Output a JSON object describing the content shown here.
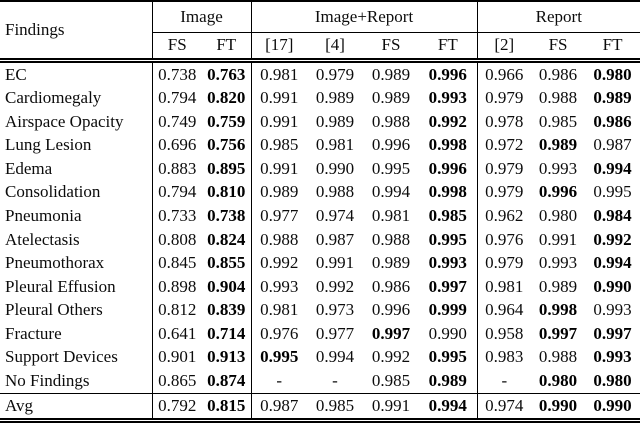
{
  "page": {
    "background_color": "#ffffff",
    "text_color": "#0c0c0c",
    "description": "Academic paper results table of per-finding scores"
  },
  "table": {
    "findings_header": "Findings",
    "groups": [
      {
        "label": "Image",
        "cols": [
          "FS",
          "FT"
        ]
      },
      {
        "label": "Image+Report",
        "cols": [
          "[17]",
          "[4]",
          "FS",
          "FT"
        ]
      },
      {
        "label": "Report",
        "cols": [
          "[2]",
          "FS",
          "FT"
        ]
      }
    ],
    "rows": [
      {
        "finding": "EC",
        "cells": [
          "0.738",
          "0.763",
          "0.981",
          "0.979",
          "0.989",
          "0.996",
          "0.966",
          "0.986",
          "0.980"
        ],
        "bold": [
          1,
          5,
          8
        ]
      },
      {
        "finding": "Cardiomegaly",
        "cells": [
          "0.794",
          "0.820",
          "0.991",
          "0.989",
          "0.989",
          "0.993",
          "0.979",
          "0.988",
          "0.989"
        ],
        "bold": [
          1,
          5,
          8
        ]
      },
      {
        "finding": "Airspace Opacity",
        "cells": [
          "0.749",
          "0.759",
          "0.991",
          "0.989",
          "0.988",
          "0.992",
          "0.978",
          "0.985",
          "0.986"
        ],
        "bold": [
          1,
          5,
          8
        ]
      },
      {
        "finding": "Lung Lesion",
        "cells": [
          "0.696",
          "0.756",
          "0.985",
          "0.981",
          "0.996",
          "0.998",
          "0.972",
          "0.989",
          "0.987"
        ],
        "bold": [
          1,
          5,
          7
        ]
      },
      {
        "finding": "Edema",
        "cells": [
          "0.883",
          "0.895",
          "0.991",
          "0.990",
          "0.995",
          "0.996",
          "0.979",
          "0.993",
          "0.994"
        ],
        "bold": [
          1,
          5,
          8
        ]
      },
      {
        "finding": "Consolidation",
        "cells": [
          "0.794",
          "0.810",
          "0.989",
          "0.988",
          "0.994",
          "0.998",
          "0.979",
          "0.996",
          "0.995"
        ],
        "bold": [
          1,
          5,
          7
        ]
      },
      {
        "finding": "Pneumonia",
        "cells": [
          "0.733",
          "0.738",
          "0.977",
          "0.974",
          "0.981",
          "0.985",
          "0.962",
          "0.980",
          "0.984"
        ],
        "bold": [
          1,
          5,
          8
        ]
      },
      {
        "finding": "Atelectasis",
        "cells": [
          "0.808",
          "0.824",
          "0.988",
          "0.987",
          "0.988",
          "0.995",
          "0.976",
          "0.991",
          "0.992"
        ],
        "bold": [
          1,
          5,
          8
        ]
      },
      {
        "finding": "Pneumothorax",
        "cells": [
          "0.845",
          "0.855",
          "0.992",
          "0.991",
          "0.989",
          "0.993",
          "0.979",
          "0.993",
          "0.994"
        ],
        "bold": [
          1,
          5,
          8
        ]
      },
      {
        "finding": "Pleural Effusion",
        "cells": [
          "0.898",
          "0.904",
          "0.993",
          "0.992",
          "0.986",
          "0.997",
          "0.981",
          "0.989",
          "0.990"
        ],
        "bold": [
          1,
          5,
          8
        ]
      },
      {
        "finding": "Pleural Others",
        "cells": [
          "0.812",
          "0.839",
          "0.981",
          "0.973",
          "0.996",
          "0.999",
          "0.964",
          "0.998",
          "0.993"
        ],
        "bold": [
          1,
          5,
          7
        ]
      },
      {
        "finding": "Fracture",
        "cells": [
          "0.641",
          "0.714",
          "0.976",
          "0.977",
          "0.997",
          "0.990",
          "0.958",
          "0.997",
          "0.997"
        ],
        "bold": [
          1,
          4,
          7,
          8
        ]
      },
      {
        "finding": "Support Devices",
        "cells": [
          "0.901",
          "0.913",
          "0.995",
          "0.994",
          "0.992",
          "0.995",
          "0.983",
          "0.988",
          "0.993"
        ],
        "bold": [
          1,
          2,
          5,
          8
        ]
      },
      {
        "finding": "No Findings",
        "cells": [
          "0.865",
          "0.874",
          "-",
          "-",
          "0.985",
          "0.989",
          "-",
          "0.980",
          "0.980"
        ],
        "bold": [
          1,
          5,
          7,
          8
        ]
      }
    ],
    "avg_row": {
      "finding": "Avg",
      "cells": [
        "0.792",
        "0.815",
        "0.987",
        "0.985",
        "0.991",
        "0.994",
        "0.974",
        "0.990",
        "0.990"
      ],
      "bold": [
        1,
        5,
        7,
        8
      ]
    }
  }
}
